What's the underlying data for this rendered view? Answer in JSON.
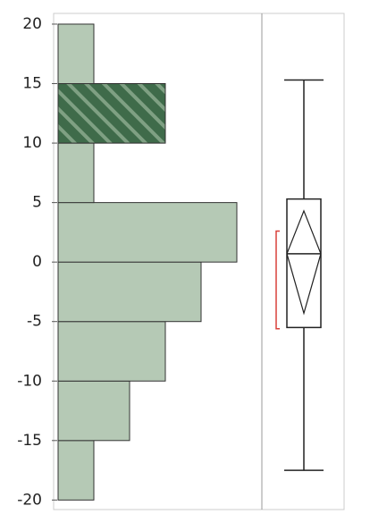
{
  "chart_data": {
    "type": "histogram",
    "orientation": "horizontal",
    "bins": [
      -20,
      -15,
      -10,
      -5,
      0,
      5,
      10,
      15,
      20
    ],
    "values": [
      1,
      2,
      3,
      4,
      5,
      1,
      3,
      1
    ],
    "selected_values": [
      0,
      0,
      0,
      0,
      0,
      0,
      3,
      0
    ],
    "color": "#b5c9b5",
    "selected_color": "#3f6b4a",
    "ylim": [
      -20.8,
      20.9
    ],
    "yticks": [
      -20,
      -15,
      -10,
      -5,
      0,
      5,
      10,
      15,
      20
    ],
    "xlim": [
      0,
      5.7
    ],
    "box": {
      "min": -17.5,
      "q1": -5.5,
      "median": 0.7,
      "q3": 5.3,
      "max": 15.3,
      "mean": 0.7,
      "mean_ci": [
        -4.3,
        4.3
      ],
      "shortest_half": [
        -5.6,
        2.6
      ],
      "color": "#222222",
      "shortest_half_color": "#d9403a"
    }
  }
}
